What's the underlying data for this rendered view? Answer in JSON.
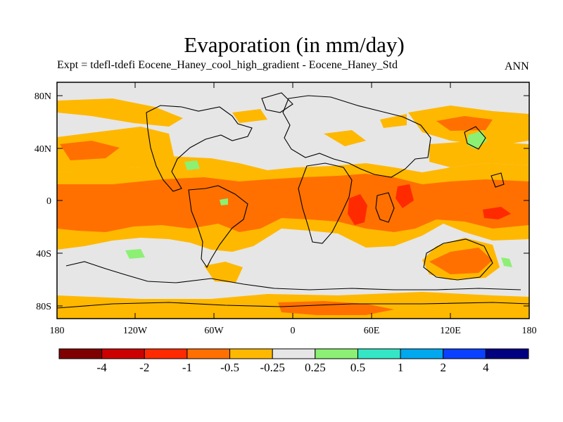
{
  "title": "Evaporation (in mm/day)",
  "subtitle": "Expt = tdefl-tdefi  Eocene_Haney_cool_high_gradient - Eocene_Haney_Std",
  "season": "ANN",
  "background": "#e6e6e6",
  "lat_ticks": [
    "80N",
    "40N",
    "0",
    "40S",
    "80S"
  ],
  "lon_ticks": [
    "180",
    "120W",
    "60W",
    "0",
    "60E",
    "120E",
    "180"
  ],
  "colorbar": {
    "colors": [
      "#7f0000",
      "#cc0000",
      "#ff2a00",
      "#ff7000",
      "#ffb800",
      "#e6e6e6",
      "#8cf074",
      "#35e6c4",
      "#00a8ee",
      "#0a40ff",
      "#000080"
    ],
    "labels": [
      "-4",
      "-2",
      "-1",
      "-0.5",
      "-0.25",
      "0.25",
      "0.5",
      "1",
      "2",
      "4"
    ]
  }
}
